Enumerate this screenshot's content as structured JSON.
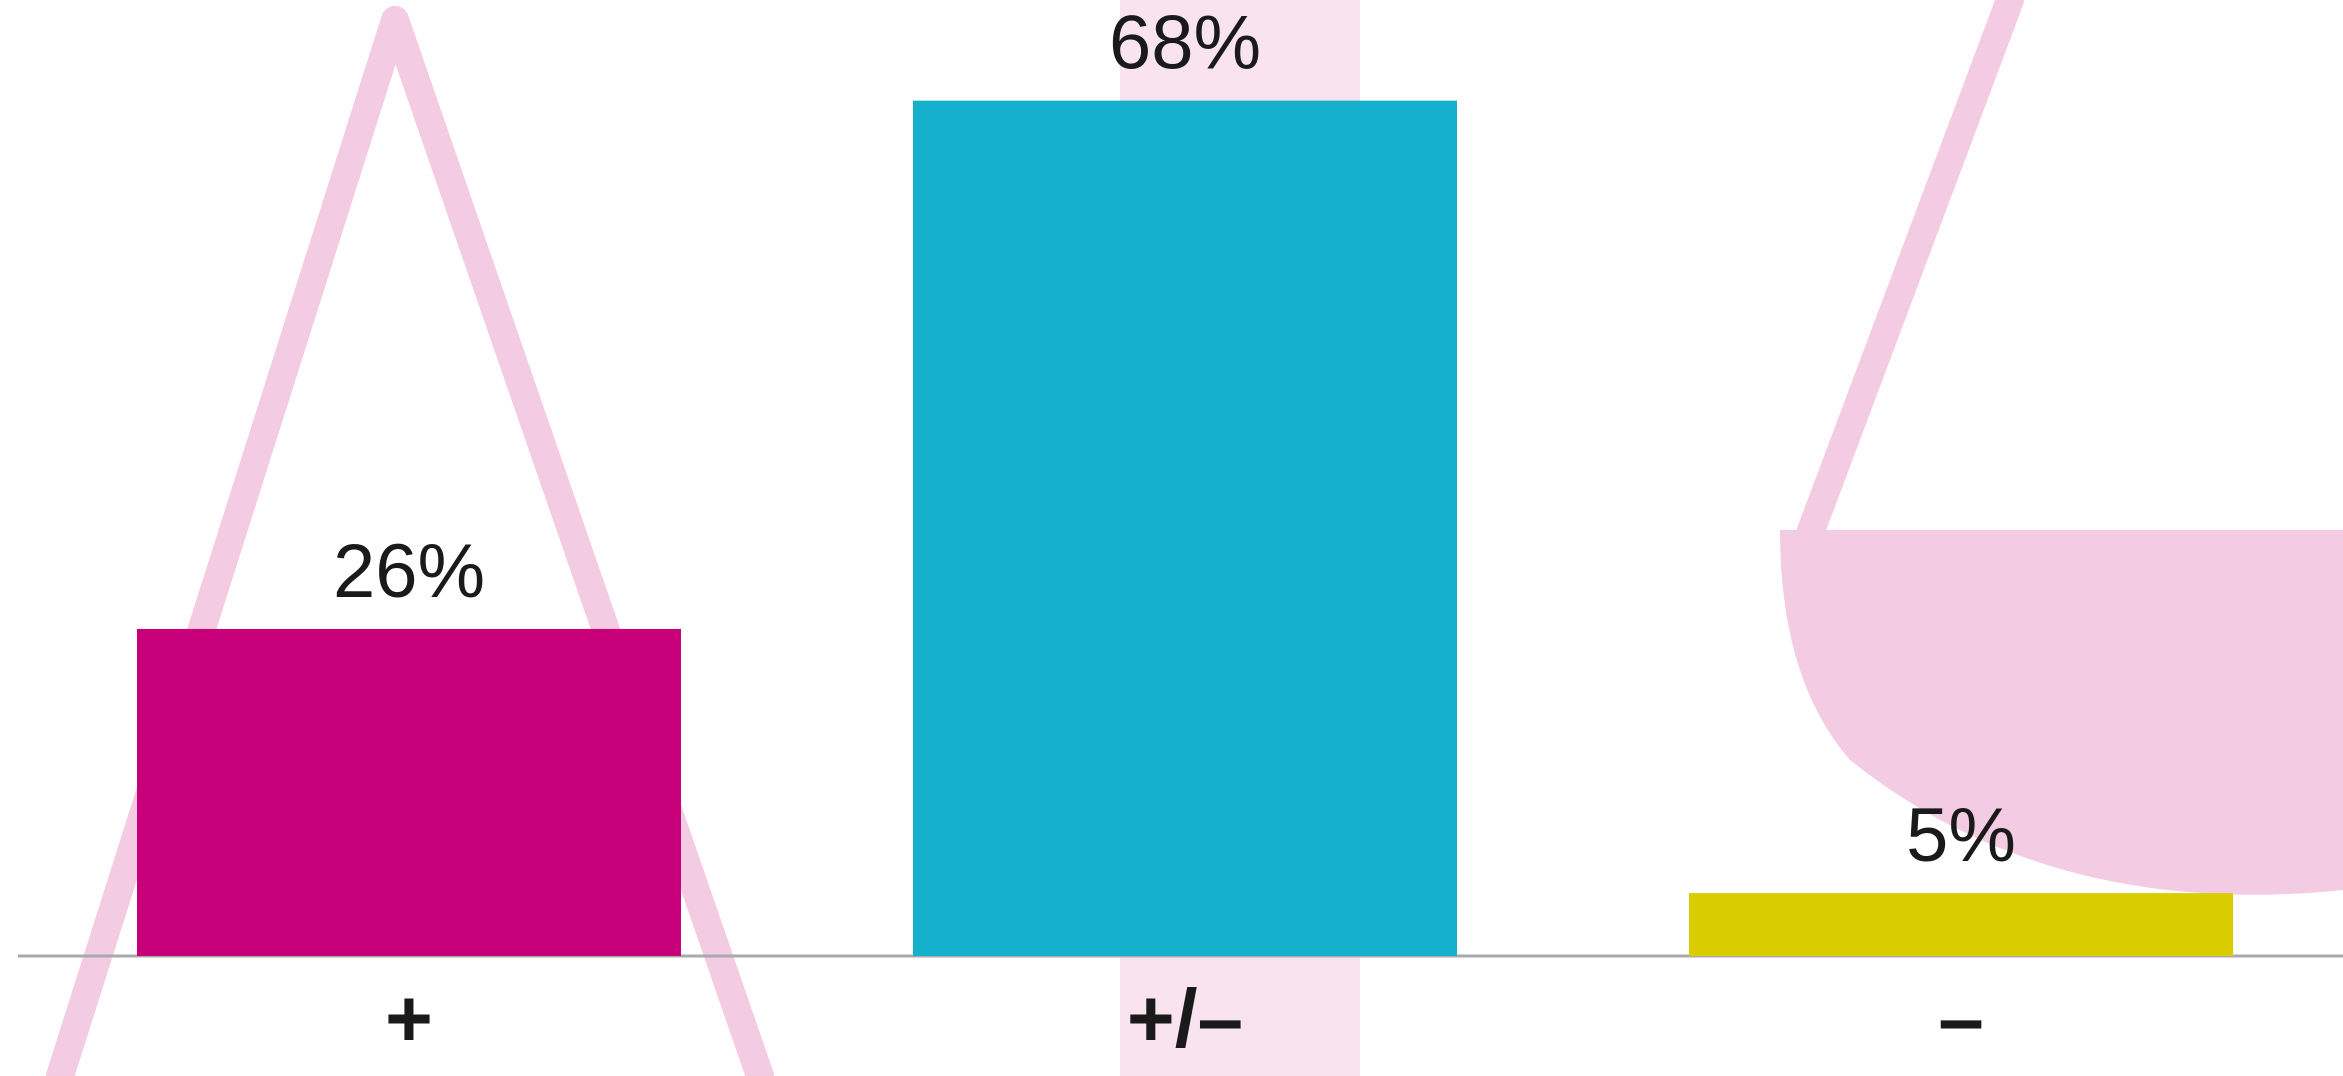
{
  "chart_data": {
    "type": "bar",
    "categories": [
      "+",
      "+/–",
      "–"
    ],
    "values": [
      26,
      68,
      5
    ],
    "value_labels": [
      "26%",
      "68%",
      "5%"
    ],
    "colors": [
      "#c8007a",
      "#14b0cc",
      "#d9cc00"
    ],
    "ylim": [
      0,
      76
    ]
  }
}
